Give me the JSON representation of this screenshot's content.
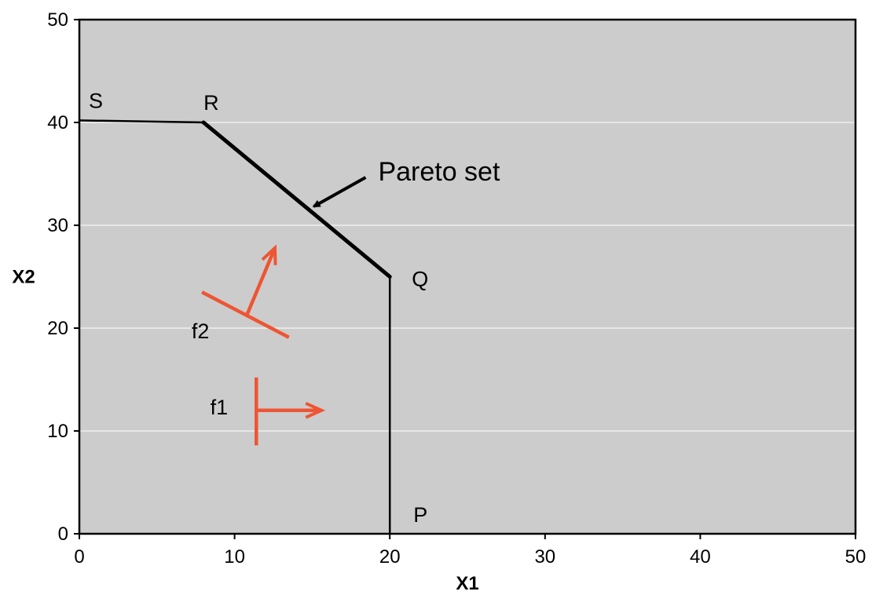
{
  "chart_data": {
    "type": "line",
    "title": "",
    "xlabel": "X1",
    "ylabel": "X2",
    "xlim": [
      0,
      50
    ],
    "ylim": [
      0,
      50
    ],
    "xticks": [
      0,
      10,
      20,
      30,
      40,
      50
    ],
    "yticks": [
      0,
      10,
      20,
      30,
      40,
      50
    ],
    "grid": "horizontal",
    "colors": {
      "plot_bg": "#cccccc",
      "gridline": "#ffffff",
      "boundary": "#000000",
      "objective": "#ee5533"
    },
    "boundary": [
      {
        "x": 0,
        "y": 40.2
      },
      {
        "x": 8,
        "y": 40
      },
      {
        "x": 20,
        "y": 25
      },
      {
        "x": 20,
        "y": 0
      }
    ],
    "pareto_segment": [
      {
        "x": 8,
        "y": 40
      },
      {
        "x": 20,
        "y": 25
      }
    ],
    "points": [
      {
        "label": "S",
        "x": 0,
        "y": 40.2
      },
      {
        "label": "R",
        "x": 8,
        "y": 40
      },
      {
        "label": "Q",
        "x": 20,
        "y": 25
      },
      {
        "label": "P",
        "x": 20,
        "y": 0
      }
    ],
    "annotation": {
      "text": "Pareto set",
      "target": {
        "x": 14.8,
        "y": 31.6
      }
    },
    "objectives": [
      {
        "label": "f1",
        "line": [
          {
            "x": 11.4,
            "y": 15.2
          },
          {
            "x": 11.4,
            "y": 8.6
          }
        ],
        "arrow_from": {
          "x": 11.4,
          "y": 12
        },
        "arrow_to": {
          "x": 15.6,
          "y": 12
        }
      },
      {
        "label": "f2",
        "line": [
          {
            "x": 7.9,
            "y": 23.5
          },
          {
            "x": 13.5,
            "y": 19.1
          }
        ],
        "arrow_from": {
          "x": 10.8,
          "y": 21.3
        },
        "arrow_to": {
          "x": 12.6,
          "y": 27.8
        }
      }
    ]
  }
}
